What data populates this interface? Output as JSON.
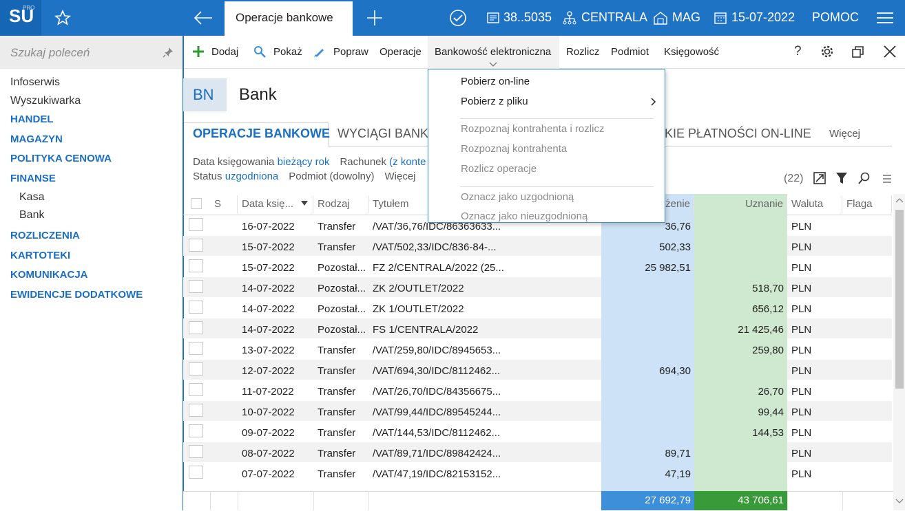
{
  "topbar": {
    "logo": "SU",
    "logo_sup": "PRO",
    "tab": "Operacje bankowe",
    "doc_number": "38..5035",
    "company": "CENTRALA",
    "warehouse": "MAG",
    "date": "15-07-2022",
    "help": "POMOC"
  },
  "sidebar": {
    "search_placeholder": "Szukaj poleceń",
    "items": [
      {
        "label": "Infoserwis",
        "level": "plain"
      },
      {
        "label": "Wyszukiwarka",
        "level": "plain"
      },
      {
        "label": "HANDEL",
        "level": "section"
      },
      {
        "label": "MAGAZYN",
        "level": "section"
      },
      {
        "label": "POLITYKA CENOWA",
        "level": "section"
      },
      {
        "label": "FINANSE",
        "level": "section"
      },
      {
        "label": "Kasa",
        "level": "sub"
      },
      {
        "label": "Bank",
        "level": "sub"
      },
      {
        "label": "ROZLICZENIA",
        "level": "section"
      },
      {
        "label": "KARTOTEKI",
        "level": "section"
      },
      {
        "label": "KOMUNIKACJA",
        "level": "section"
      },
      {
        "label": "EWIDENCJE DODATKOWE",
        "level": "section"
      }
    ]
  },
  "toolbar": {
    "items": [
      "Dodaj",
      "Pokaż",
      "Popraw",
      "Operacje",
      "Bankowość elektroniczna",
      "Rozlicz",
      "Podmiot",
      "Księgowość"
    ],
    "help": "?"
  },
  "header": {
    "badge": "BN",
    "title": "Bank"
  },
  "tabs": [
    "OPERACJE BANKOWE",
    "WYCIĄGI BANKO",
    "KIE PŁATNOŚCI ON-LINE",
    "Więcej"
  ],
  "filters": [
    [
      {
        "label": "Data księgowania",
        "value": "bieżący rok"
      },
      {
        "label": "Rachunek",
        "value": "(z konte"
      }
    ],
    [
      {
        "label": "Status",
        "value": "uzgodniona"
      },
      {
        "label": "Podmiot (dowolny)"
      },
      {
        "label": "Więcej"
      }
    ]
  ],
  "count": "(22)",
  "table": {
    "columns": [
      "S",
      "Data księ...",
      "Rodzaj",
      "Tytułem",
      "żenie",
      "Uznanie",
      "Waluta",
      "Flaga"
    ],
    "rows": [
      [
        "16-07-2022",
        "Transfer",
        "/VAT/36,76/IDC/86363633...",
        "36,76",
        null,
        "PLN"
      ],
      [
        "15-07-2022",
        "Transfer",
        "/VAT/502,33/IDC/836-84-...",
        "502,33",
        null,
        "PLN"
      ],
      [
        "15-07-2022",
        "Pozostał...",
        "FZ 2/CENTRALA/2022 (25...",
        "25 982,51",
        null,
        "PLN"
      ],
      [
        "14-07-2022",
        "Pozostał...",
        "ZK 2/OUTLET/2022",
        null,
        "518,70",
        "PLN"
      ],
      [
        "14-07-2022",
        "Pozostał...",
        "ZK 1/OUTLET/2022",
        null,
        "656,12",
        "PLN"
      ],
      [
        "14-07-2022",
        "Pozostał...",
        "FS 1/CENTRALA/2022",
        null,
        "21 425,46",
        "PLN"
      ],
      [
        "13-07-2022",
        "Transfer",
        "/VAT/259,80/IDC/8945653...",
        null,
        "259,80",
        "PLN"
      ],
      [
        "12-07-2022",
        "Transfer",
        "/VAT/694,30/IDC/8112462...",
        "694,30",
        null,
        "PLN"
      ],
      [
        "11-07-2022",
        "Transfer",
        "/VAT/26,70/IDC/84356675...",
        null,
        "26,70",
        "PLN"
      ],
      [
        "10-07-2022",
        "Transfer",
        "/VAT/99,44/IDC/89545244...",
        null,
        "99,44",
        "PLN"
      ],
      [
        "09-07-2022",
        "Transfer",
        "/VAT/144,53/IDC/8112462...",
        null,
        "144,53",
        "PLN"
      ],
      [
        "08-07-2022",
        "Transfer",
        "/VAT/89,71/IDC/89842424...",
        "89,71",
        null,
        "PLN"
      ],
      [
        "07-07-2022",
        "Transfer",
        "/VAT/47,19/IDC/82153152...",
        "47,19",
        null,
        "PLN"
      ]
    ],
    "totals": [
      "27 692,79",
      "43 706,61"
    ]
  },
  "menu": {
    "groups": [
      [
        {
          "label": "Pobierz on-line",
          "enabled": true
        },
        {
          "label": "Pobierz z pliku",
          "enabled": true,
          "submenu": true
        }
      ],
      [
        {
          "label": "Rozpoznaj kontrahenta i rozlicz",
          "enabled": false
        },
        {
          "label": "Rozpoznaj kontrahenta",
          "enabled": false
        },
        {
          "label": "Rozlicz operacje",
          "enabled": false
        }
      ],
      [
        {
          "label": "Oznacz jako uzgodnioną",
          "enabled": false
        },
        {
          "label": "Oznacz jako nieuzgodnioną",
          "enabled": false
        }
      ]
    ]
  }
}
